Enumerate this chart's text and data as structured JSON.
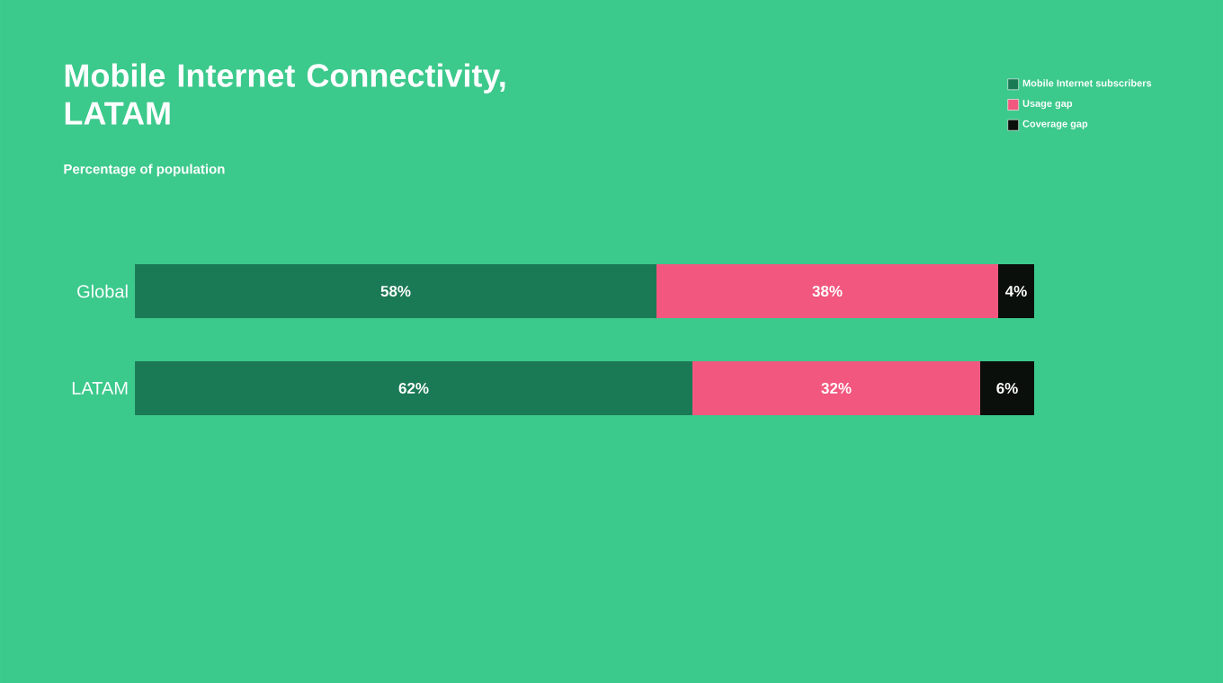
{
  "chart_data": {
    "type": "bar",
    "orientation": "horizontal",
    "stacked": true,
    "title": "Mobile Internet Connectivity, LATAM",
    "subtitle": "Percentage of population",
    "categories": [
      "Global",
      "LATAM"
    ],
    "xlim": [
      0,
      100
    ],
    "tick_labels": "y",
    "legend": "top right",
    "series": [
      {
        "name": "Mobile Internet subscribers",
        "color": "#1b7a56",
        "values": [
          58,
          62
        ],
        "value_labels": [
          "58%",
          "62%"
        ]
      },
      {
        "name": "Usage gap",
        "color": "#f2577f",
        "values": [
          38,
          32
        ],
        "value_labels": [
          "38%",
          "32%"
        ]
      },
      {
        "name": "Coverage gap",
        "color": "#0a0f0b",
        "values": [
          4,
          6
        ],
        "value_labels": [
          "4%",
          "6%"
        ]
      }
    ]
  }
}
